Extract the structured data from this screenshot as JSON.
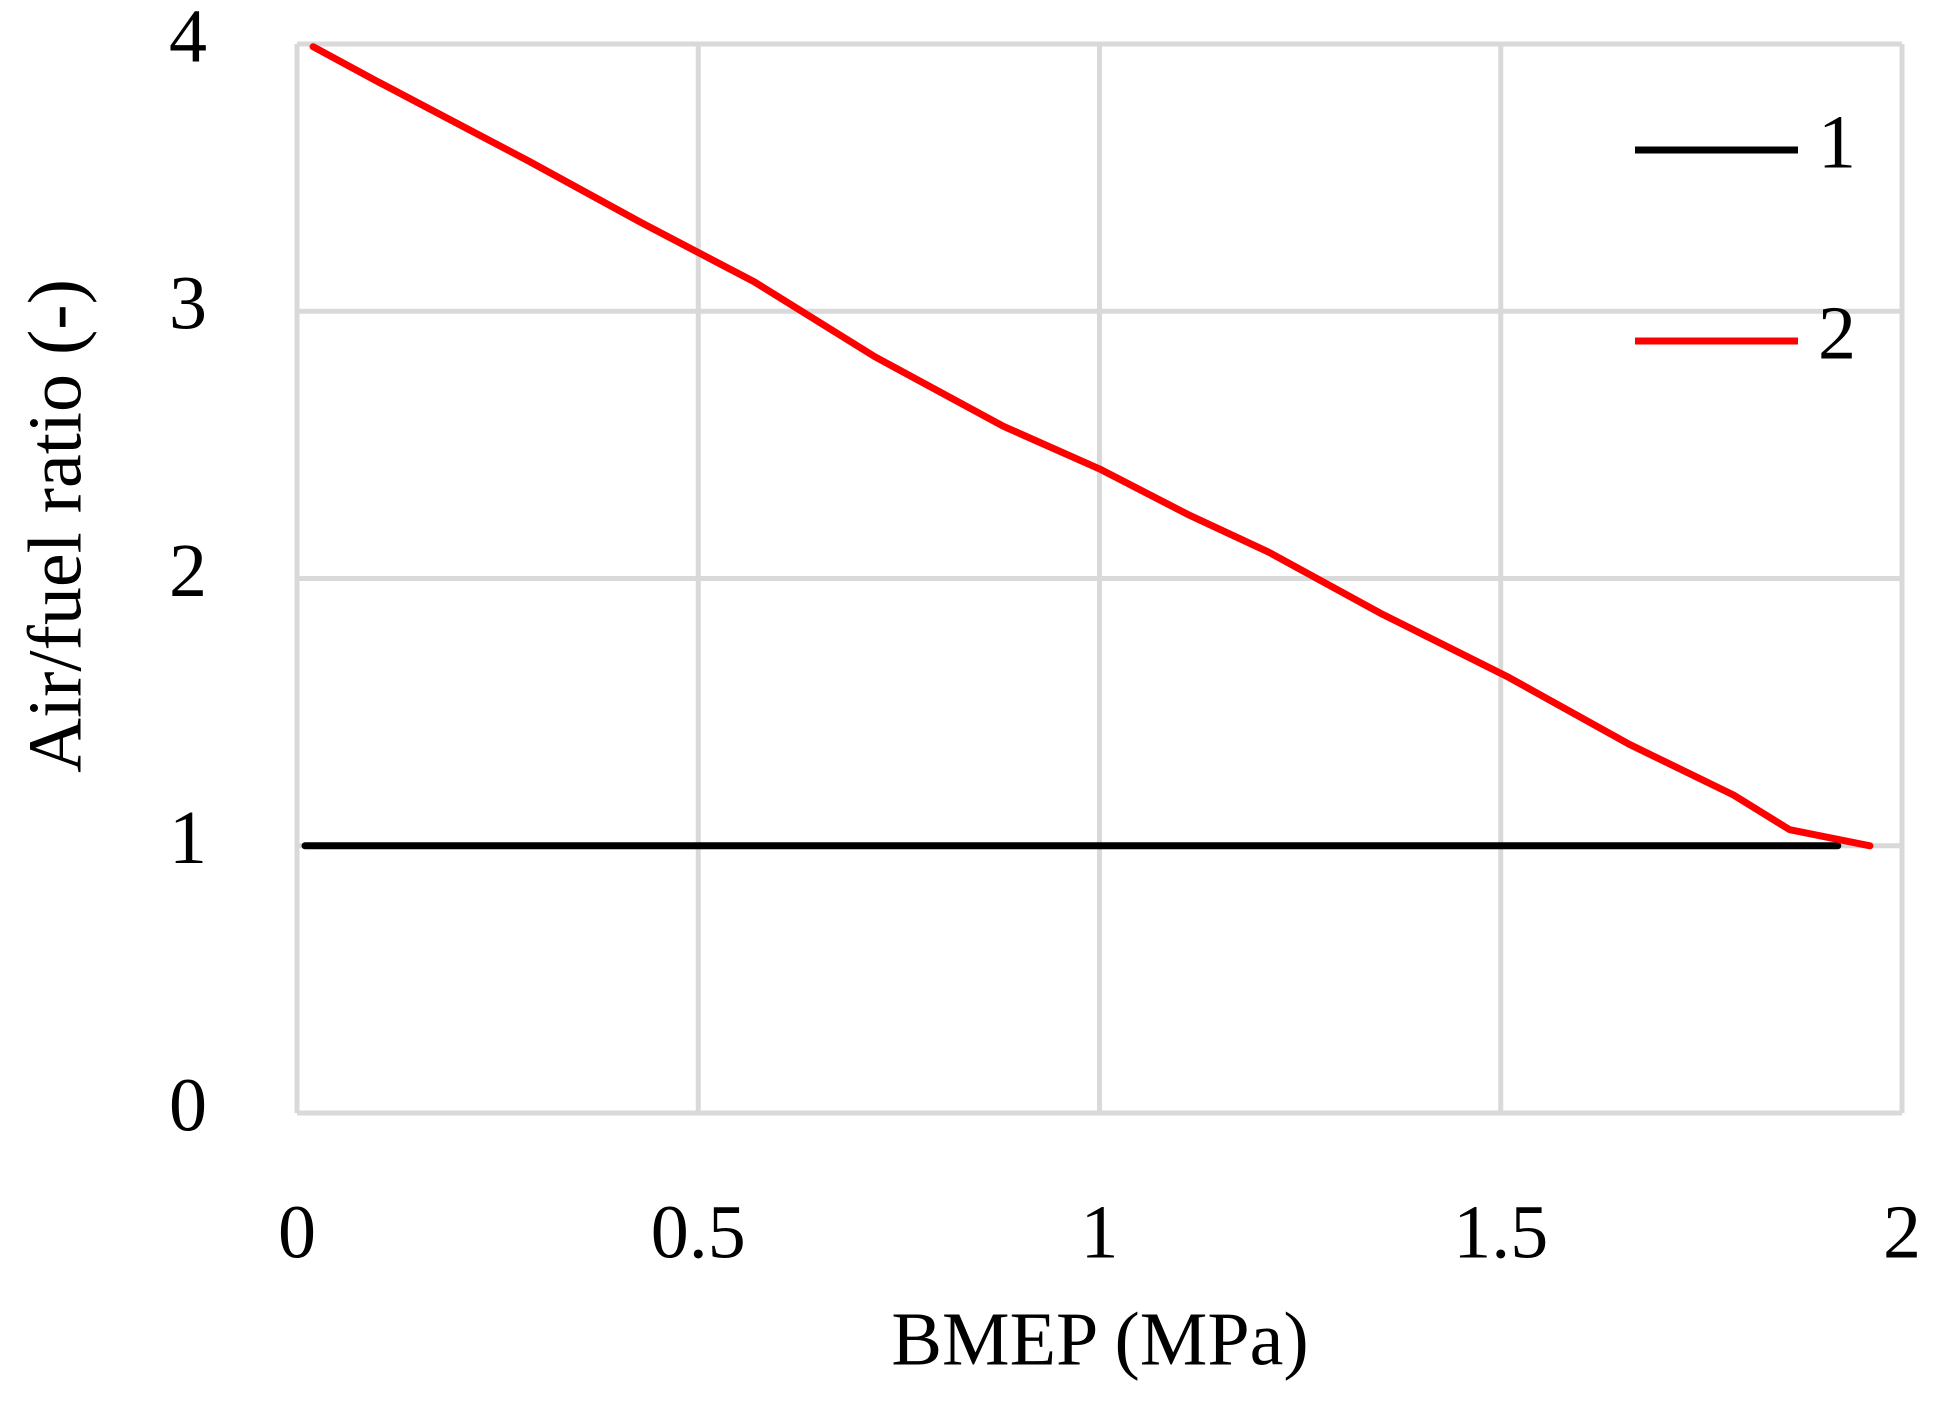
{
  "chart_data": {
    "type": "line",
    "x_label": "BMEP (MPa)",
    "y_label": "Air/fuel ratio (-)",
    "xlim": [
      0,
      2
    ],
    "ylim": [
      0,
      4
    ],
    "xticks": [
      0,
      0.5,
      1,
      1.5,
      2
    ],
    "yticks": [
      0,
      1,
      2,
      3,
      4
    ],
    "grid": true,
    "legend": "upper right",
    "series": [
      {
        "name": "1",
        "color": "#000000",
        "x": [
          0.01,
          1.92
        ],
        "values": [
          1,
          1
        ]
      },
      {
        "name": "2",
        "color": "#ff0000",
        "x": [
          0.02,
          0.1,
          0.29,
          0.43,
          0.57,
          0.72,
          0.88,
          1.0,
          1.11,
          1.21,
          1.35,
          1.51,
          1.66,
          1.79,
          1.86,
          1.96
        ],
        "values": [
          3.99,
          3.86,
          3.56,
          3.33,
          3.11,
          2.83,
          2.57,
          2.41,
          2.24,
          2.1,
          1.87,
          1.63,
          1.38,
          1.19,
          1.06,
          1.0
        ]
      }
    ]
  }
}
